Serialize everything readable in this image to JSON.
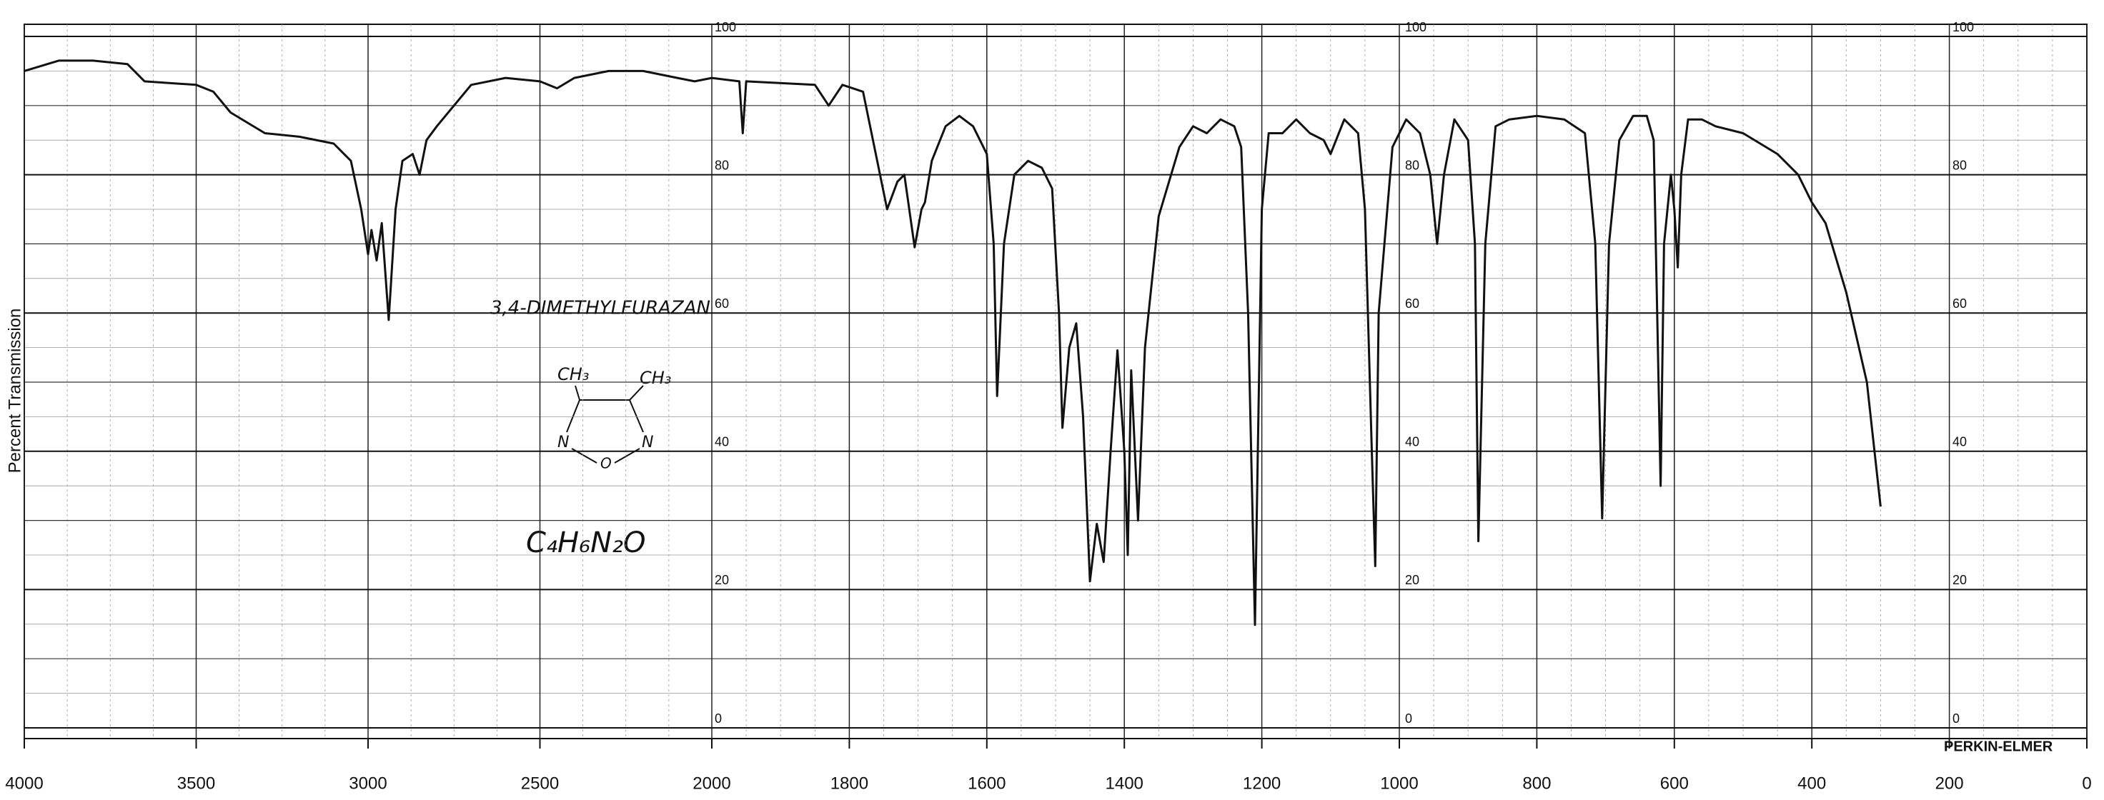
{
  "chart_data": {
    "type": "line",
    "ylabel": "Percent Transmission",
    "annotations": {
      "compound": "3,4-DIMETHYLFURAZAN",
      "formula": "C₄H₆N₂O",
      "instrument": "PERKIN-ELMER"
    },
    "structure_labels": [
      "CH₃",
      "CH₃",
      "N",
      "N",
      "O"
    ],
    "color": "#111111",
    "grid": true,
    "xticks": [
      4000,
      3500,
      3000,
      2500,
      2000,
      1800,
      1600,
      1400,
      1200,
      1000,
      800,
      600,
      400,
      200,
      0
    ],
    "ylim": [
      0,
      100
    ],
    "yticks": [
      0,
      20,
      40,
      60,
      80,
      100
    ],
    "x": [
      4000,
      3900,
      3800,
      3700,
      3650,
      3500,
      3450,
      3400,
      3300,
      3200,
      3100,
      3050,
      3020,
      3000,
      2990,
      2975,
      2960,
      2940,
      2920,
      2900,
      2870,
      2850,
      2830,
      2800,
      2700,
      2600,
      2500,
      2450,
      2400,
      2300,
      2200,
      2100,
      2050,
      2000,
      1960,
      1955,
      1950,
      1850,
      1830,
      1810,
      1780,
      1745,
      1730,
      1720,
      1705,
      1695,
      1690,
      1680,
      1660,
      1640,
      1620,
      1600,
      1590,
      1585,
      1575,
      1560,
      1540,
      1520,
      1505,
      1495,
      1490,
      1480,
      1470,
      1460,
      1450,
      1440,
      1430,
      1420,
      1410,
      1400,
      1395,
      1390,
      1380,
      1370,
      1350,
      1320,
      1300,
      1280,
      1260,
      1240,
      1230,
      1220,
      1210,
      1200,
      1190,
      1170,
      1150,
      1130,
      1110,
      1100,
      1080,
      1060,
      1050,
      1040,
      1035,
      1030,
      1010,
      990,
      970,
      955,
      945,
      935,
      920,
      900,
      890,
      885,
      875,
      860,
      840,
      800,
      760,
      730,
      715,
      705,
      695,
      680,
      660,
      640,
      630,
      625,
      620,
      615,
      605,
      600,
      595,
      590,
      580,
      560,
      540,
      500,
      450,
      420,
      400,
      380,
      350,
      320,
      300
    ],
    "values": [
      95,
      96.5,
      96.5,
      96,
      93.5,
      93,
      92,
      89,
      86,
      85.5,
      84.5,
      82,
      75,
      68.5,
      72,
      67.6,
      73,
      59,
      75,
      82,
      83,
      80,
      85,
      87,
      93,
      94,
      93.5,
      92.5,
      94,
      95,
      95,
      94,
      93.5,
      94,
      93.5,
      86,
      93.5,
      93,
      90,
      93,
      92,
      75,
      79,
      80,
      69.5,
      75,
      76,
      82,
      87,
      88.5,
      87,
      83,
      70,
      48,
      70,
      80,
      82,
      81,
      78,
      60,
      43.4,
      55,
      58.5,
      45,
      21.2,
      29.5,
      24,
      40,
      54.6,
      40,
      25,
      51.7,
      30,
      55,
      74,
      84,
      87,
      86,
      88,
      87,
      84,
      60,
      14.9,
      75,
      86,
      86,
      88,
      86,
      85,
      83,
      88,
      86,
      75,
      40,
      23.4,
      60,
      84,
      88,
      86,
      80,
      70,
      80,
      88,
      85,
      70,
      27,
      70,
      87,
      88,
      88.5,
      88,
      86,
      70,
      30.3,
      70,
      85,
      88.5,
      88.5,
      85,
      60,
      35,
      70,
      80,
      75,
      66.6,
      80,
      88,
      88,
      87,
      86,
      83,
      80,
      76,
      73,
      63,
      50,
      32
    ]
  }
}
